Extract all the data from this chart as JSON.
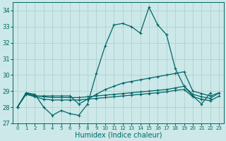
{
  "xlabel": "Humidex (Indice chaleur)",
  "xlim": [
    -0.5,
    23.5
  ],
  "ylim": [
    27,
    34.5
  ],
  "yticks": [
    27,
    28,
    29,
    30,
    31,
    32,
    33,
    34
  ],
  "xticks": [
    0,
    1,
    2,
    3,
    4,
    5,
    6,
    7,
    8,
    9,
    10,
    11,
    12,
    13,
    14,
    15,
    16,
    17,
    18,
    19,
    20,
    21,
    22,
    23
  ],
  "background_color": "#cce8e8",
  "grid_color": "#aacccc",
  "line_color": "#006666",
  "series1": [
    28.0,
    28.9,
    28.8,
    28.0,
    27.5,
    27.8,
    27.6,
    27.5,
    28.2,
    30.1,
    31.8,
    33.1,
    33.2,
    33.0,
    32.6,
    34.2,
    33.1,
    32.5,
    30.4,
    29.3,
    28.7,
    28.2,
    28.9,
    null
  ],
  "series2": [
    28.0,
    28.9,
    28.7,
    28.7,
    28.7,
    28.7,
    28.7,
    28.2,
    28.5,
    28.8,
    29.1,
    29.3,
    29.5,
    29.6,
    29.7,
    29.8,
    29.9,
    30.0,
    30.1,
    30.2,
    29.0,
    28.85,
    28.7,
    28.9
  ],
  "series3": [
    28.0,
    28.85,
    28.7,
    28.65,
    28.6,
    28.6,
    28.6,
    28.6,
    28.65,
    28.7,
    28.75,
    28.8,
    28.85,
    28.9,
    28.95,
    29.0,
    29.05,
    29.1,
    29.2,
    29.3,
    28.8,
    28.65,
    28.55,
    28.9
  ],
  "series4": [
    28.0,
    28.8,
    28.65,
    28.5,
    28.45,
    28.45,
    28.45,
    28.45,
    28.5,
    28.55,
    28.6,
    28.65,
    28.7,
    28.75,
    28.8,
    28.85,
    28.9,
    28.95,
    29.05,
    29.1,
    28.65,
    28.5,
    28.4,
    28.7
  ],
  "fontsize_tick": 6,
  "fontsize_label": 7,
  "linewidth": 0.9,
  "markersize": 3.5,
  "markeredgewidth": 0.8
}
